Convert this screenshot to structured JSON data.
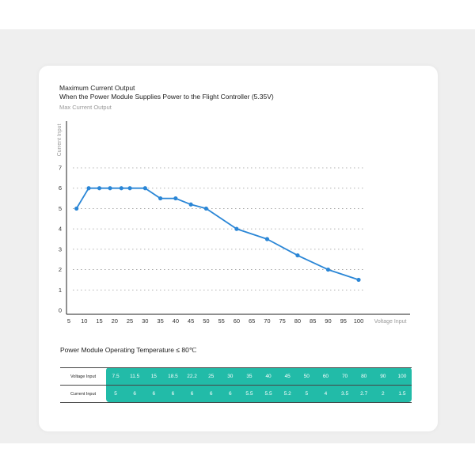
{
  "title_line1": "Maximum Current Output",
  "title_line2": "When the Power Module Supplies Power to the Flight Controller (5.35V)",
  "subtitle": "Max Current Output",
  "temperature_note": "Power Module Operating Temperature ≤ 80℃",
  "colors": {
    "line": "#2a86d6",
    "table": "#22bba8",
    "background_band": "#efefef"
  },
  "chart_data": {
    "type": "line",
    "title": "Maximum Current Output",
    "xlabel": "Voltage Input",
    "ylabel": "Current Input",
    "legend": "Max Current Output",
    "xlim": [
      5,
      100
    ],
    "ylim": [
      0,
      7
    ],
    "grid": "horizontal dotted",
    "x_ticks": [
      "5",
      "10",
      "15",
      "20",
      "25",
      "30",
      "35",
      "40",
      "45",
      "50",
      "55",
      "60",
      "65",
      "70",
      "75",
      "80",
      "85",
      "90",
      "95",
      "100"
    ],
    "y_ticks": [
      "0",
      "1",
      "2",
      "3",
      "4",
      "5",
      "6",
      "7"
    ],
    "x": [
      7.5,
      11.5,
      15,
      18.5,
      22.2,
      25,
      30,
      35,
      40,
      45,
      50,
      60,
      70,
      80,
      90,
      100
    ],
    "y": [
      5,
      6,
      6,
      6,
      6,
      6,
      6,
      5.5,
      5.5,
      5.2,
      5,
      4,
      3.5,
      2.7,
      2,
      1.5
    ]
  },
  "table": {
    "row_labels": [
      "Voltage Input",
      "Current Input"
    ],
    "voltage": [
      "7.5",
      "11.5",
      "15",
      "18.5",
      "22.2",
      "25",
      "30",
      "35",
      "40",
      "45",
      "50",
      "60",
      "70",
      "80",
      "90",
      "100"
    ],
    "current": [
      "5",
      "6",
      "6",
      "6",
      "6",
      "6",
      "6",
      "5.5",
      "5.5",
      "5.2",
      "5",
      "4",
      "3.5",
      "2.7",
      "2",
      "1.5"
    ]
  }
}
